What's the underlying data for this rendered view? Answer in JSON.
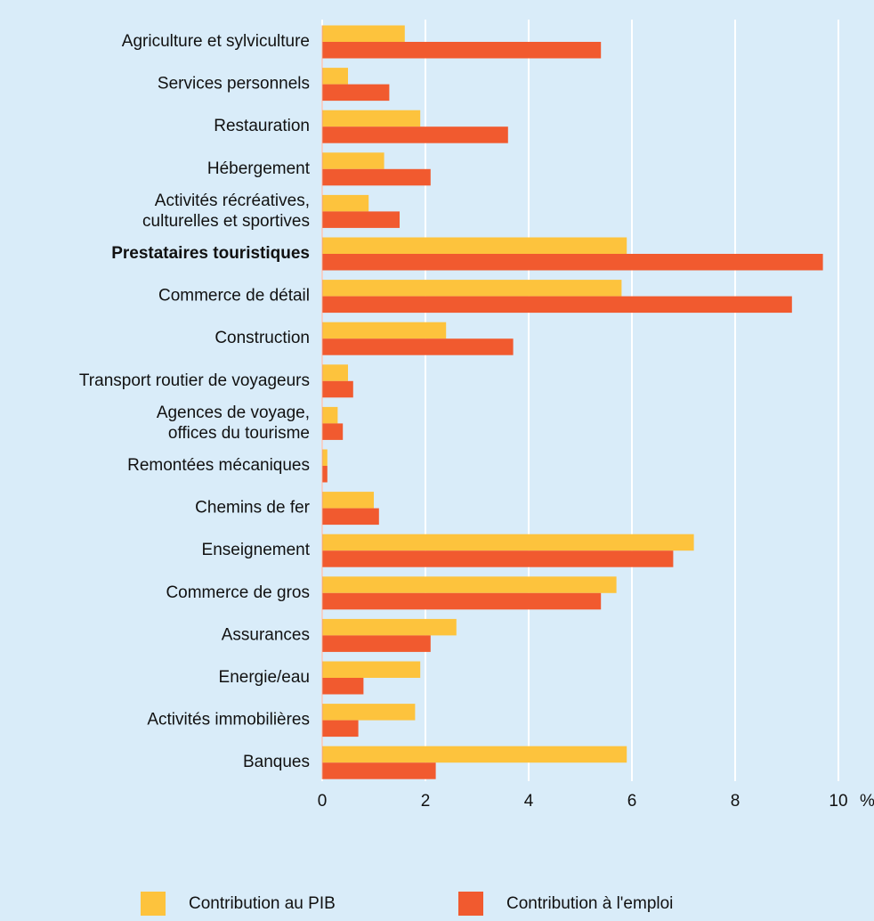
{
  "chart_data": {
    "type": "hbar",
    "categories": [
      "Agriculture et sylviculture",
      "Services personnels",
      "Restauration",
      "Hébergement",
      "Activités récréatives,\nculturelles et sportives",
      "Prestataires touristiques",
      "Commerce de détail",
      "Construction",
      "Transport routier de voyageurs",
      "Agences de voyage,\noffices du tourisme",
      "Remontées mécaniques",
      "Chemins de fer",
      "Enseignement",
      "Commerce de gros",
      "Assurances",
      "Energie/eau",
      "Activités immobilières",
      "Banques"
    ],
    "bold_category": 5,
    "series": [
      {
        "name": "Contribution au PIB",
        "color": "#fdc33d",
        "values": [
          1.6,
          0.5,
          1.9,
          1.2,
          0.9,
          5.9,
          5.8,
          2.4,
          0.5,
          0.3,
          0.1,
          1.0,
          7.2,
          5.7,
          2.6,
          1.9,
          1.8,
          5.9
        ]
      },
      {
        "name": "Contribution à l'emploi",
        "color": "#f15a2f",
        "values": [
          5.4,
          1.3,
          3.6,
          2.1,
          1.5,
          9.7,
          9.1,
          3.7,
          0.6,
          0.4,
          0.1,
          1.1,
          6.8,
          5.4,
          2.1,
          0.8,
          0.7,
          2.2
        ]
      }
    ],
    "xlim": [
      0,
      10
    ],
    "xticks": [
      0,
      2,
      4,
      6,
      8,
      10
    ],
    "x_unit": "%",
    "grid": true
  }
}
